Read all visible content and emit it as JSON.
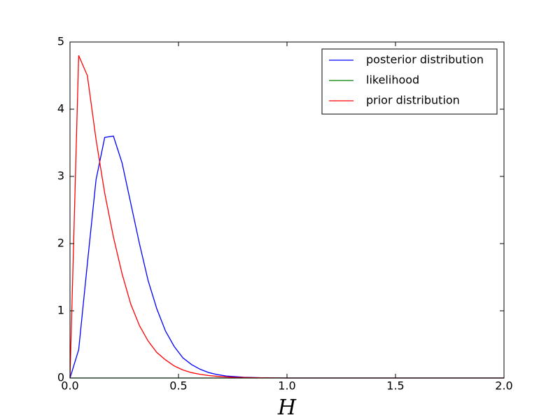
{
  "chart_data": {
    "type": "line",
    "x": [
      0,
      0.04,
      0.08,
      0.12,
      0.16,
      0.2,
      0.24,
      0.28,
      0.32,
      0.36,
      0.4,
      0.44,
      0.48,
      0.52,
      0.56,
      0.6,
      0.64,
      0.68,
      0.72,
      0.76,
      0.8,
      0.84,
      0.88,
      0.92,
      0.96,
      1.0,
      2.0
    ],
    "series": [
      {
        "name": "posterior distribution",
        "color": "#0000ff",
        "values": [
          0,
          0.42,
          1.7,
          2.95,
          3.58,
          3.6,
          3.2,
          2.6,
          2.0,
          1.45,
          1.03,
          0.7,
          0.47,
          0.3,
          0.2,
          0.13,
          0.08,
          0.05,
          0.03,
          0.02,
          0.012,
          0.007,
          0.004,
          0.002,
          0.001,
          0,
          0
        ]
      },
      {
        "name": "likelihood",
        "color": "#008000",
        "values": [
          0,
          0,
          0,
          0,
          0,
          0,
          0,
          0,
          0,
          0,
          0,
          0,
          0,
          0,
          0,
          0,
          0,
          0,
          0,
          0,
          0,
          0,
          0,
          0,
          0,
          0,
          0
        ]
      },
      {
        "name": "prior distribution",
        "color": "#ff0000",
        "values": [
          0,
          4.8,
          4.5,
          3.55,
          2.75,
          2.1,
          1.55,
          1.1,
          0.78,
          0.55,
          0.38,
          0.27,
          0.18,
          0.12,
          0.08,
          0.055,
          0.036,
          0.024,
          0.016,
          0.01,
          0.007,
          0.005,
          0.003,
          0.002,
          0.001,
          0,
          0
        ]
      }
    ],
    "xlabel": "H",
    "xlim": [
      0,
      2
    ],
    "xticks": [
      {
        "value": 0,
        "label": "0.0"
      },
      0.5,
      {
        "value": 1,
        "label": "1.0"
      },
      1.5,
      {
        "value": 2,
        "label": "2.0"
      }
    ],
    "ylim": [
      0,
      5
    ],
    "yticks": [
      0,
      1,
      2,
      3,
      4,
      5
    ],
    "legend": "upper right"
  }
}
